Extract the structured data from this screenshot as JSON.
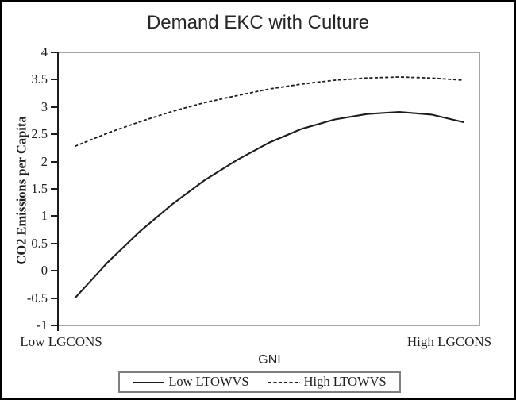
{
  "title": "Demand EKC with Culture",
  "y_axis": {
    "label": "CO2 Emissions per Capita",
    "ticks": [
      "4",
      "3.5",
      "3",
      "2.5",
      "2",
      "1.5",
      "1",
      "0.5",
      "0",
      "-0.5",
      "-1"
    ]
  },
  "x_axis": {
    "label": "GNI",
    "left_label": "Low LGCONS",
    "right_label": "High LGCONS"
  },
  "legend": {
    "items": [
      {
        "label": "Low LTOWVS",
        "style": "solid"
      },
      {
        "label": "High LTOWVS",
        "style": "dashed"
      }
    ]
  },
  "colors": {
    "line": "#1c1c1c",
    "frame_gray": "#a6a6a6",
    "legend_border": "#7f7f7f",
    "text": "#1f1f1f"
  },
  "chart_data": {
    "type": "line",
    "title": "Demand EKC with Culture",
    "xlabel": "GNI",
    "ylabel": "CO2 Emissions per Capita",
    "ylim": [
      -1,
      4
    ],
    "ytick_step": 0.5,
    "grid": false,
    "legend_position": "bottom",
    "x_range_labels": [
      "Low LGCONS",
      "High LGCONS"
    ],
    "x": [
      0,
      1,
      2,
      3,
      4,
      5,
      6,
      7,
      8,
      9,
      10,
      11,
      12
    ],
    "series": [
      {
        "name": "Low LTOWVS",
        "line_style": "solid",
        "values": [
          -0.5,
          0.15,
          0.72,
          1.22,
          1.66,
          2.03,
          2.35,
          2.6,
          2.77,
          2.87,
          2.91,
          2.86,
          2.72
        ]
      },
      {
        "name": "High LTOWVS",
        "line_style": "dashed",
        "values": [
          2.28,
          2.52,
          2.73,
          2.92,
          3.08,
          3.21,
          3.33,
          3.42,
          3.49,
          3.53,
          3.55,
          3.53,
          3.49
        ]
      }
    ]
  }
}
